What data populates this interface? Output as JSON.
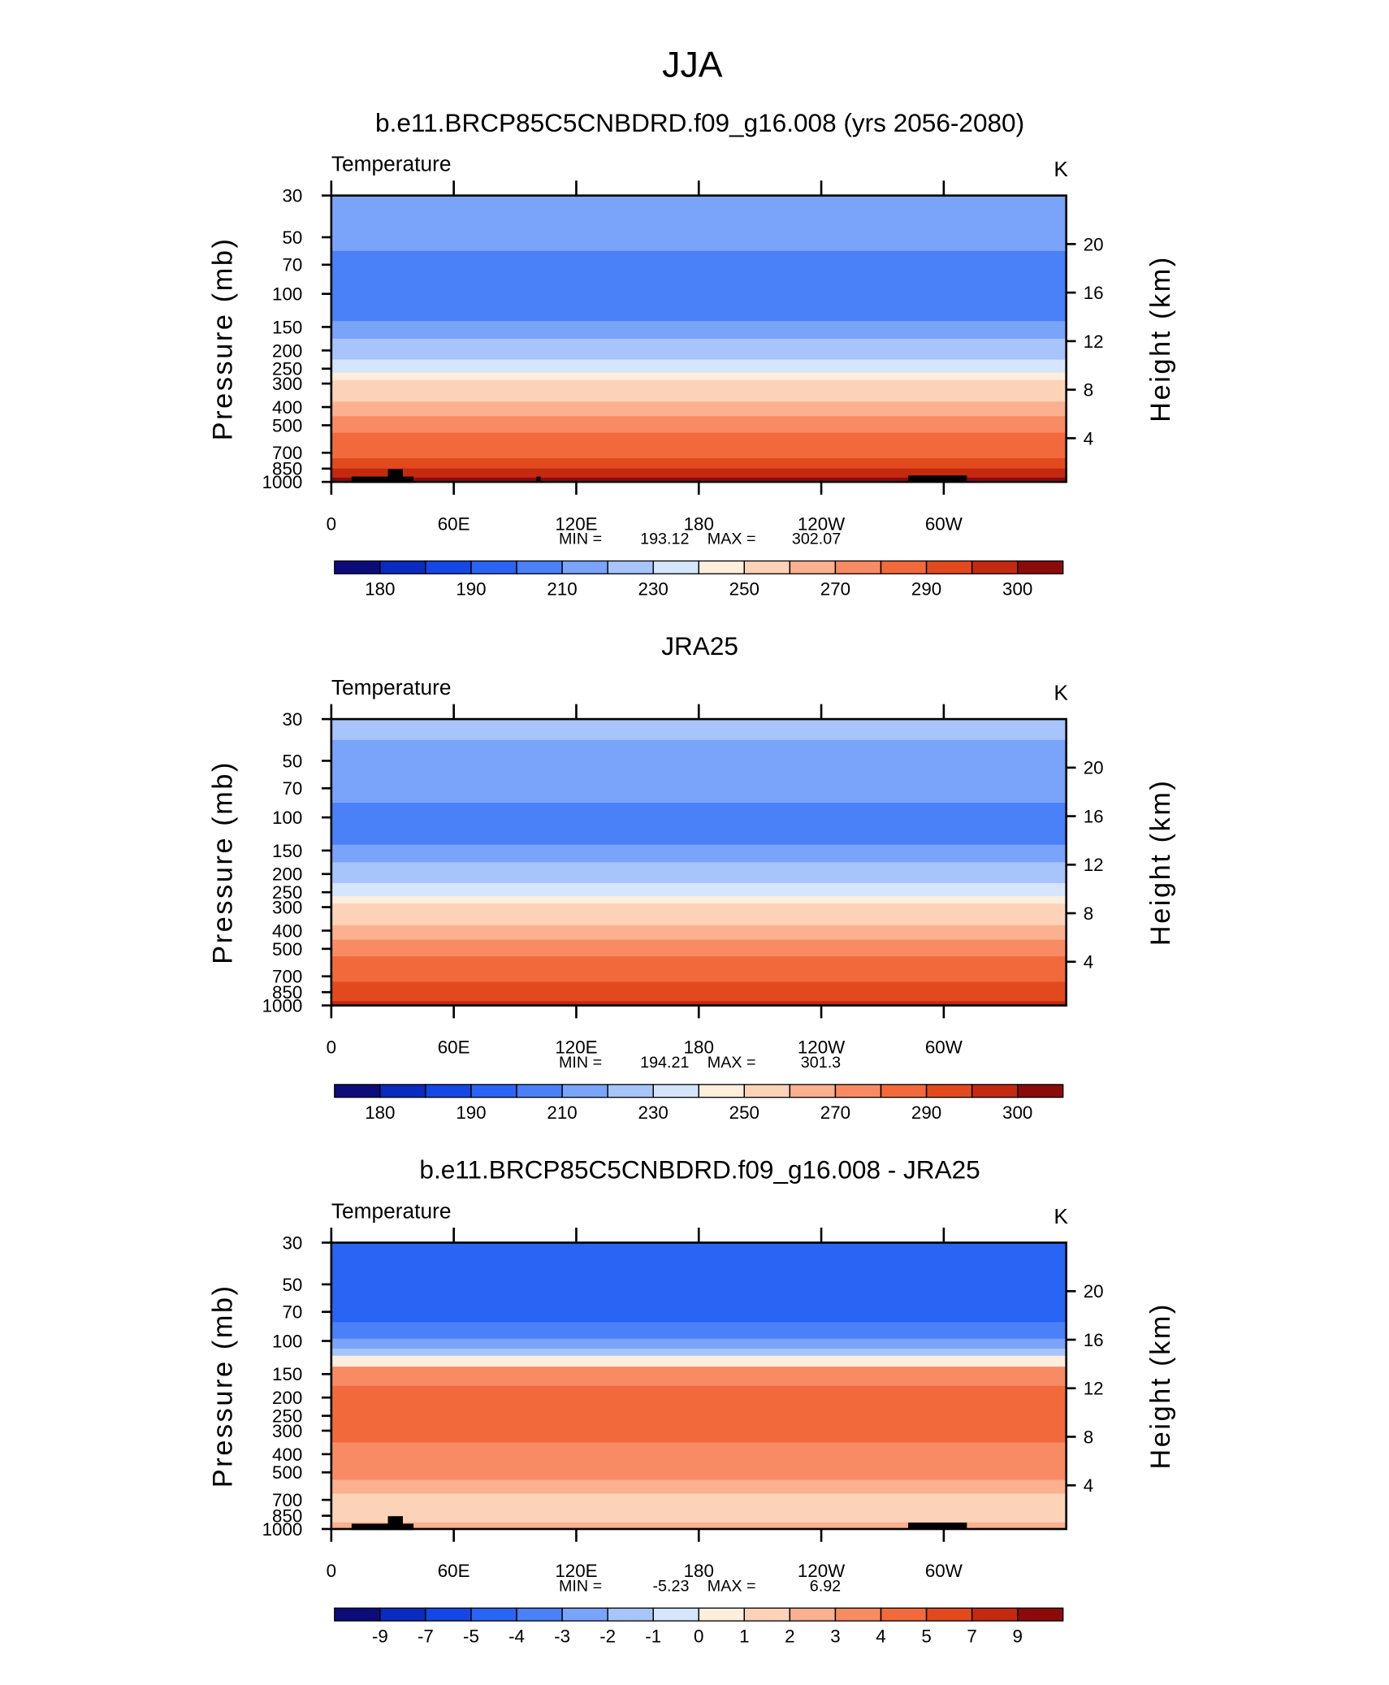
{
  "title": "JJA",
  "chart_data": [
    {
      "type": "contour",
      "title": "b.e11.BRCP85C5CNBDRD.f09_g16.008 (yrs 2056-2080)",
      "label": "Temperature",
      "units": "K",
      "xlim": [
        0,
        360
      ],
      "xticks": [
        0,
        {
          "value": 60,
          "label": "60E"
        },
        {
          "value": 120,
          "label": "120E"
        },
        180,
        {
          "value": 240,
          "label": "120W"
        },
        {
          "value": 300,
          "label": "60W"
        }
      ],
      "ylabel": "Pressure  (mb)",
      "ylog": true,
      "ylim": [
        1000,
        30
      ],
      "yticks": [
        30,
        50,
        70,
        100,
        150,
        200,
        250,
        300,
        400,
        500,
        700,
        850,
        1000
      ],
      "y2label": "Height  (km)",
      "y2lim": [
        0.4,
        24
      ],
      "y2ticks": [
        4,
        8,
        12,
        16,
        20
      ],
      "y": [
        30,
        50,
        70,
        100,
        130,
        150,
        200,
        250,
        275,
        300,
        350,
        400,
        500,
        600,
        700,
        800,
        900,
        1000
      ],
      "values": [
        215,
        214,
        205,
        204,
        206,
        214,
        224,
        236,
        246,
        255,
        258,
        265,
        275,
        284,
        287,
        292,
        297,
        301
      ],
      "levels": [
        180,
        {
          "value": 185,
          "label": null
        },
        190,
        {
          "value": 200,
          "label": null
        },
        210,
        {
          "value": 220,
          "label": null
        },
        230,
        {
          "value": 240,
          "label": null
        },
        250,
        {
          "value": 260,
          "label": null
        },
        270,
        {
          "value": 280,
          "label": null
        },
        290,
        {
          "value": 295,
          "label": null
        },
        300
      ],
      "colors": [
        "#0c0c7a",
        "#0a2bbf",
        "#1447e6",
        "#2a64f5",
        "#4a80f8",
        "#79a4fa",
        "#a7c4fb",
        "#d4e5fc",
        "#fdeedd",
        "#fcd3b8",
        "#fbb08f",
        "#f88b64",
        "#f26a3c",
        "#e24a1e",
        "#c42a10",
        "#8b0b0b"
      ],
      "min_label": "MIN =",
      "min": 193.12,
      "max_label": "MAX =",
      "max": 302.07
    },
    {
      "type": "contour",
      "title": "JRA25",
      "label": "Temperature",
      "units": "K",
      "xlim": [
        0,
        360
      ],
      "xticks": [
        0,
        {
          "value": 60,
          "label": "60E"
        },
        {
          "value": 120,
          "label": "120E"
        },
        180,
        {
          "value": 240,
          "label": "120W"
        },
        {
          "value": 300,
          "label": "60W"
        }
      ],
      "ylabel": "Pressure  (mb)",
      "ylog": true,
      "ylim": [
        1000,
        30
      ],
      "yticks": [
        30,
        50,
        70,
        100,
        150,
        200,
        250,
        300,
        400,
        500,
        700,
        850,
        1000
      ],
      "y2label": "Height  (km)",
      "y2lim": [
        0.4,
        24
      ],
      "y2ticks": [
        4,
        8,
        12,
        16,
        20
      ],
      "y": [
        30,
        50,
        70,
        100,
        130,
        150,
        200,
        250,
        275,
        300,
        350,
        400,
        500,
        600,
        700,
        800,
        900,
        1000
      ],
      "values": [
        225,
        214,
        213,
        204,
        206,
        214,
        224,
        236,
        246,
        255,
        258,
        265,
        275,
        284,
        287,
        292,
        292,
        297
      ],
      "levels": [
        180,
        {
          "value": 185,
          "label": null
        },
        190,
        {
          "value": 200,
          "label": null
        },
        210,
        {
          "value": 220,
          "label": null
        },
        230,
        {
          "value": 240,
          "label": null
        },
        250,
        {
          "value": 260,
          "label": null
        },
        270,
        {
          "value": 280,
          "label": null
        },
        290,
        {
          "value": 295,
          "label": null
        },
        300
      ],
      "colors": [
        "#0c0c7a",
        "#0a2bbf",
        "#1447e6",
        "#2a64f5",
        "#4a80f8",
        "#79a4fa",
        "#a7c4fb",
        "#d4e5fc",
        "#fdeedd",
        "#fcd3b8",
        "#fbb08f",
        "#f88b64",
        "#f26a3c",
        "#e24a1e",
        "#c42a10",
        "#8b0b0b"
      ],
      "min_label": "MIN =",
      "min": 194.21,
      "max_label": "MAX =",
      "max": 301.3
    },
    {
      "type": "contour",
      "title": "b.e11.BRCP85C5CNBDRD.f09_g16.008 - JRA25",
      "label": "Temperature",
      "units": "K",
      "xlim": [
        0,
        360
      ],
      "xticks": [
        0,
        {
          "value": 60,
          "label": "60E"
        },
        {
          "value": 120,
          "label": "120E"
        },
        180,
        {
          "value": 240,
          "label": "120W"
        },
        {
          "value": 300,
          "label": "60W"
        }
      ],
      "ylabel": "Pressure  (mb)",
      "ylog": true,
      "ylim": [
        1000,
        30
      ],
      "yticks": [
        30,
        50,
        70,
        100,
        150,
        200,
        250,
        300,
        400,
        500,
        700,
        850,
        1000
      ],
      "y2label": "Height  (km)",
      "y2lim": [
        0.4,
        24
      ],
      "y2ticks": [
        4,
        8,
        12,
        16,
        20
      ],
      "y": [
        30,
        50,
        70,
        90,
        105,
        115,
        125,
        150,
        200,
        300,
        400,
        500,
        600,
        700,
        850,
        1000
      ],
      "values": [
        -4.5,
        -4.2,
        -4.8,
        -3.5,
        -2.5,
        -1.5,
        0.5,
        3.5,
        4.2,
        4.3,
        3.6,
        3.2,
        2.5,
        1.5,
        1.5,
        2.5
      ],
      "levels": [
        -9,
        -7,
        -5,
        -4,
        -3,
        -2,
        -1,
        0,
        1,
        2,
        3,
        4,
        5,
        7,
        9
      ],
      "colors": [
        "#0c0c7a",
        "#0a2bbf",
        "#1447e6",
        "#2a64f5",
        "#4a80f8",
        "#79a4fa",
        "#a7c4fb",
        "#d4e5fc",
        "#fdeedd",
        "#fcd3b8",
        "#fbb08f",
        "#f88b64",
        "#f26a3c",
        "#e24a1e",
        "#c42a10",
        "#8b0b0b"
      ],
      "min_label": "MIN =",
      "min": -5.23,
      "max_label": "MAX =",
      "max": 6.92
    }
  ]
}
